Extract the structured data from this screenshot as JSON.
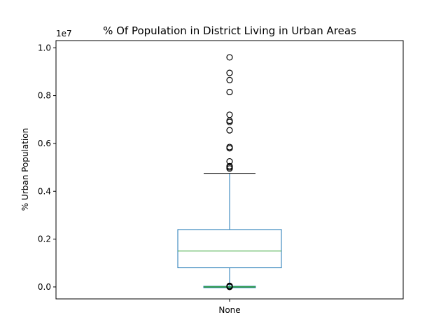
{
  "chart_data": {
    "type": "box",
    "title": "% Of Population in District Living in Urban Areas",
    "xlabel": "",
    "ylabel": "% Urban Population",
    "categories": [
      "None"
    ],
    "ylim": [
      -0.05,
      1.03
    ],
    "y_scale_label": "1e7",
    "y_ticks": [
      {
        "value": 0.0,
        "label": "0.0"
      },
      {
        "value": 0.2,
        "label": "0.2"
      },
      {
        "value": 0.4,
        "label": "0.4"
      },
      {
        "value": 0.6,
        "label": "0.6"
      },
      {
        "value": 0.8,
        "label": "0.8"
      },
      {
        "value": 1.0,
        "label": "1.0"
      }
    ],
    "grid": false,
    "main_box": {
      "q1": 0.08,
      "median": 0.15,
      "q3": 0.24,
      "whisker_low": 0.0,
      "whisker_high": 0.475,
      "outliers": [
        0.495,
        0.5,
        0.505,
        0.525,
        0.58,
        0.585,
        0.655,
        0.69,
        0.695,
        0.72,
        0.815,
        0.865,
        0.895,
        0.96
      ],
      "low_outliers": [
        0.0,
        0.0,
        0.0,
        0.0,
        0.0
      ]
    },
    "secondary_box": {
      "q1": -0.0005,
      "median": 0.0,
      "q3": 0.0005,
      "whisker_low": -0.001,
      "whisker_high": 0.001
    },
    "colors": {
      "box": "#1f77b4",
      "median": "#2ca02c",
      "whisker": "#1f77b4",
      "cap": "#000000",
      "outlier": "#000000"
    }
  }
}
